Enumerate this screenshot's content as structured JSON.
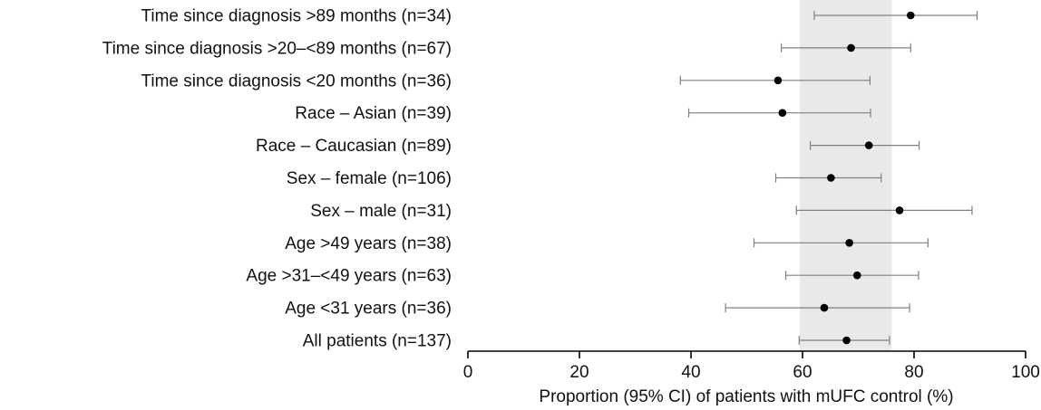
{
  "chart_data": {
    "type": "forest",
    "xlabel": "Proportion (95% CI) of patients with mUFC control (%)",
    "xlim": [
      0,
      100
    ],
    "xticks": [
      0,
      20,
      40,
      60,
      80,
      100
    ],
    "grid": false,
    "shaded_band": {
      "from": 59.5,
      "to": 76,
      "color": "#e9e9e9"
    },
    "rows": [
      {
        "label": "Time since diagnosis >89 months (n=34)",
        "estimate": 79.4,
        "ci": [
          62.1,
          91.3
        ]
      },
      {
        "label": "Time since diagnosis >20–<89 months (n=67)",
        "estimate": 68.7,
        "ci": [
          56.2,
          79.4
        ]
      },
      {
        "label": "Time since diagnosis <20 months (n=36)",
        "estimate": 55.6,
        "ci": [
          38.1,
          72.1
        ]
      },
      {
        "label": "Race – Asian (n=39)",
        "estimate": 56.4,
        "ci": [
          39.6,
          72.2
        ]
      },
      {
        "label": "Race – Caucasian (n=89)",
        "estimate": 71.9,
        "ci": [
          61.4,
          80.9
        ]
      },
      {
        "label": "Sex – female (n=106)",
        "estimate": 65.1,
        "ci": [
          55.2,
          74.1
        ]
      },
      {
        "label": "Sex – male (n=31)",
        "estimate": 77.4,
        "ci": [
          58.9,
          90.4
        ]
      },
      {
        "label": "Age >49 years (n=38)",
        "estimate": 68.4,
        "ci": [
          51.3,
          82.5
        ]
      },
      {
        "label": "Age >31–<49 years (n=63)",
        "estimate": 69.8,
        "ci": [
          57.0,
          80.8
        ]
      },
      {
        "label": "Age <31 years (n=36)",
        "estimate": 63.9,
        "ci": [
          46.2,
          79.2
        ]
      },
      {
        "label": "All patients (n=137)",
        "estimate": 67.9,
        "ci": [
          59.4,
          75.6
        ]
      }
    ],
    "colors": {
      "point": "#000000",
      "whisker": "#808080",
      "axis": "#000000"
    }
  }
}
